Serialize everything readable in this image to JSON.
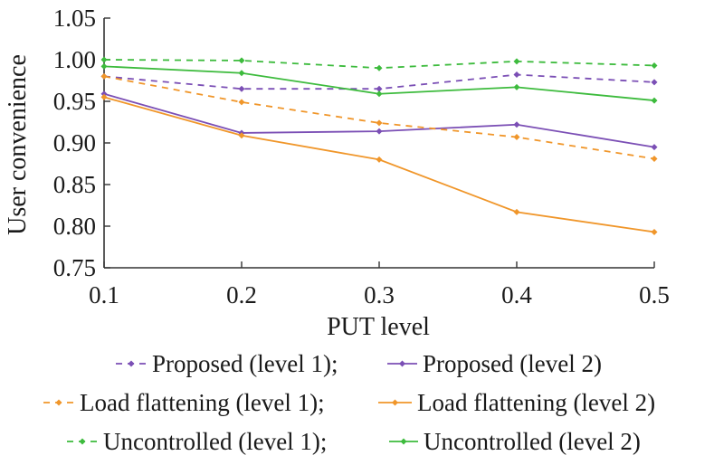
{
  "chart_data": {
    "type": "line",
    "xlabel": "PUT level",
    "ylabel": "User convenience",
    "x": [
      0.1,
      0.2,
      0.3,
      0.4,
      0.5
    ],
    "xticks": [
      "0.1",
      "0.2",
      "0.3",
      "0.4",
      "0.5"
    ],
    "xlim": [
      0.1,
      0.5
    ],
    "ylim": [
      0.75,
      1.05
    ],
    "yticks": [
      "0.75",
      "0.80",
      "0.85",
      "0.90",
      "0.95",
      "1.00",
      "1.05"
    ],
    "grid": false,
    "legend_position": "bottom",
    "series": [
      {
        "name": "Proposed (level 1)",
        "color": "#7b4fb5",
        "dash": true,
        "values": [
          0.98,
          0.965,
          0.965,
          0.982,
          0.973
        ],
        "separator": ";"
      },
      {
        "name": "Proposed (level 2)",
        "color": "#7b4fb5",
        "dash": false,
        "values": [
          0.959,
          0.912,
          0.914,
          0.922,
          0.895
        ],
        "separator": ""
      },
      {
        "name": "Load flattening (level 1)",
        "color": "#f0962a",
        "dash": true,
        "values": [
          0.98,
          0.949,
          0.924,
          0.907,
          0.881
        ],
        "separator": ";"
      },
      {
        "name": "Load flattening (level 2)",
        "color": "#f0962a",
        "dash": false,
        "values": [
          0.955,
          0.909,
          0.88,
          0.817,
          0.793
        ],
        "separator": ""
      },
      {
        "name": "Uncontrolled (level 1)",
        "color": "#3dbb3d",
        "dash": true,
        "values": [
          1.0,
          0.999,
          0.99,
          0.998,
          0.993
        ],
        "separator": ";"
      },
      {
        "name": "Uncontrolled (level 2)",
        "color": "#3dbb3d",
        "dash": false,
        "values": [
          0.992,
          0.984,
          0.959,
          0.967,
          0.951
        ],
        "separator": ""
      }
    ]
  }
}
